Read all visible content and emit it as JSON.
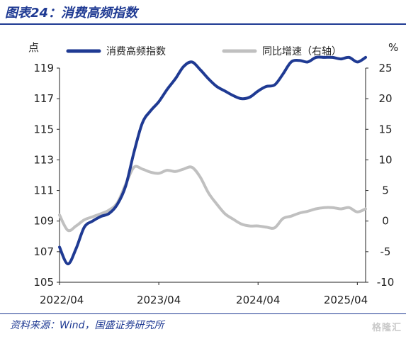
{
  "figure": {
    "title": "图表24：消费高频指数",
    "source": "资料来源：Wind，国盛证券研究所",
    "watermark": "格隆汇"
  },
  "chart_data": {
    "type": "line",
    "left_unit": "点",
    "right_unit": "%",
    "x_ticks": [
      "2022/04",
      "2023/04",
      "2024/04",
      "2025/04"
    ],
    "y_left": {
      "min": 105,
      "max": 119,
      "ticks": [
        105,
        107,
        109,
        111,
        113,
        115,
        117,
        119
      ]
    },
    "y_right": {
      "min": -10,
      "max": 25,
      "ticks": [
        -10,
        -5,
        0,
        5,
        10,
        15,
        20,
        25
      ]
    },
    "legend_position": "top",
    "grid": false,
    "series": [
      {
        "name": "消费高频指数",
        "axis": "left",
        "color": "#1f3a93",
        "x": [
          "2022/04",
          "2022/05",
          "2022/06",
          "2022/07",
          "2022/08",
          "2022/09",
          "2022/10",
          "2022/11",
          "2022/12",
          "2023/01",
          "2023/02",
          "2023/03",
          "2023/04",
          "2023/05",
          "2023/06",
          "2023/07",
          "2023/08",
          "2023/09",
          "2023/10",
          "2023/11",
          "2023/12",
          "2024/01",
          "2024/02",
          "2024/03",
          "2024/04",
          "2024/05",
          "2024/06",
          "2024/07",
          "2024/08",
          "2024/09",
          "2024/10",
          "2024/11",
          "2024/12",
          "2025/01",
          "2025/02",
          "2025/03",
          "2025/04",
          "2025/05"
        ],
        "values": [
          107.3,
          106.2,
          107.2,
          108.6,
          109.0,
          109.3,
          109.5,
          110.1,
          111.3,
          113.5,
          115.4,
          116.2,
          116.8,
          117.6,
          118.3,
          119.1,
          119.4,
          118.9,
          118.3,
          117.8,
          117.5,
          117.2,
          117.0,
          117.1,
          117.5,
          117.8,
          117.9,
          118.6,
          119.4,
          119.5,
          119.4,
          119.7,
          119.7,
          119.7,
          119.6,
          119.7,
          119.4,
          119.7
        ]
      },
      {
        "name": "同比增速（右轴）",
        "axis": "right",
        "color": "#c0c0c0",
        "x": [
          "2022/04",
          "2022/05",
          "2022/06",
          "2022/07",
          "2022/08",
          "2022/09",
          "2022/10",
          "2022/11",
          "2022/12",
          "2023/01",
          "2023/02",
          "2023/03",
          "2023/04",
          "2023/05",
          "2023/06",
          "2023/07",
          "2023/08",
          "2023/09",
          "2023/10",
          "2023/11",
          "2023/12",
          "2024/01",
          "2024/02",
          "2024/03",
          "2024/04",
          "2024/05",
          "2024/06",
          "2024/07",
          "2024/08",
          "2024/09",
          "2024/10",
          "2024/11",
          "2024/12",
          "2025/01",
          "2025/02",
          "2025/03",
          "2025/04",
          "2025/05"
        ],
        "values": [
          1.0,
          -1.5,
          -0.8,
          0.2,
          0.7,
          1.2,
          1.8,
          3.0,
          6.0,
          8.8,
          8.5,
          8.0,
          7.8,
          8.3,
          8.1,
          8.5,
          8.8,
          7.2,
          4.6,
          2.8,
          1.2,
          0.3,
          -0.5,
          -0.8,
          -0.8,
          -1.0,
          -1.1,
          0.4,
          0.8,
          1.3,
          1.6,
          2.0,
          2.2,
          2.2,
          2.0,
          2.2,
          1.5,
          2.0
        ]
      }
    ]
  }
}
